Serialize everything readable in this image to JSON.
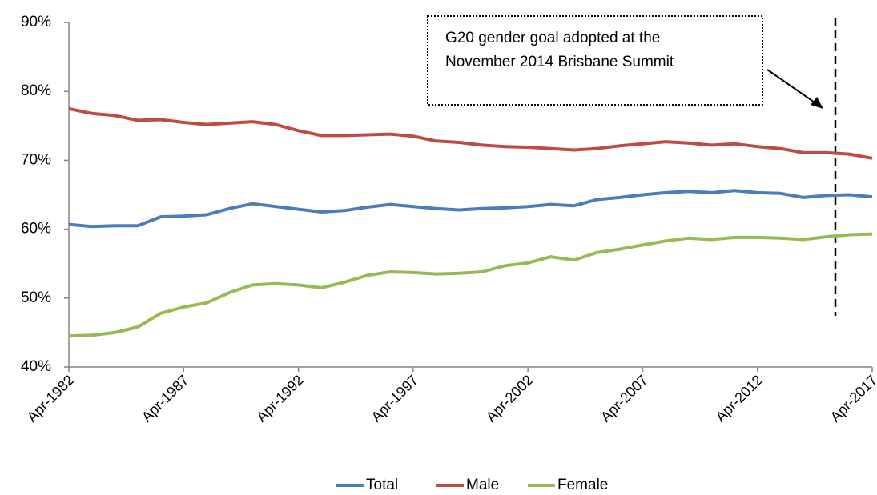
{
  "chart_data": {
    "type": "line",
    "categories": [
      "Apr-1982",
      null,
      null,
      null,
      null,
      "Apr-1987",
      null,
      null,
      null,
      null,
      "Apr-1992",
      null,
      null,
      null,
      null,
      "Apr-1997",
      null,
      null,
      null,
      null,
      "Apr-2002",
      null,
      null,
      null,
      null,
      "Apr-2007",
      null,
      null,
      null,
      null,
      "Apr-2012",
      null,
      null,
      null,
      null,
      "Apr-2017"
    ],
    "series": [
      {
        "name": "Total",
        "color": "#4a7ebb",
        "values": [
          60.7,
          60.4,
          60.5,
          60.5,
          61.8,
          61.9,
          62.1,
          63.0,
          63.7,
          63.3,
          62.9,
          62.5,
          62.7,
          63.2,
          63.6,
          63.3,
          63.0,
          62.8,
          63.0,
          63.1,
          63.3,
          63.6,
          63.4,
          64.3,
          64.6,
          65.0,
          65.3,
          65.5,
          65.3,
          65.6,
          65.3,
          65.2,
          64.6,
          64.9,
          65.0,
          64.7
        ]
      },
      {
        "name": "Male",
        "color": "#be4b48",
        "values": [
          77.5,
          76.8,
          76.5,
          75.8,
          75.9,
          75.5,
          75.2,
          75.4,
          75.6,
          75.2,
          74.3,
          73.6,
          73.6,
          73.7,
          73.8,
          73.5,
          72.8,
          72.6,
          72.2,
          72.0,
          71.9,
          71.7,
          71.5,
          71.7,
          72.1,
          72.4,
          72.7,
          72.5,
          72.2,
          72.4,
          72.0,
          71.7,
          71.1,
          71.1,
          70.9,
          70.3
        ]
      },
      {
        "name": "Female",
        "color": "#98b954",
        "values": [
          44.5,
          44.6,
          45.0,
          45.8,
          47.8,
          48.7,
          49.3,
          50.8,
          51.9,
          52.1,
          51.9,
          51.5,
          52.3,
          53.3,
          53.8,
          53.7,
          53.5,
          53.6,
          53.8,
          54.7,
          55.1,
          56.0,
          55.5,
          56.6,
          57.1,
          57.7,
          58.3,
          58.7,
          58.5,
          58.8,
          58.8,
          58.7,
          58.5,
          58.9,
          59.2,
          59.3
        ]
      }
    ],
    "ylim": [
      40,
      90
    ],
    "yticks": [
      {
        "value": 40,
        "label": "40%"
      },
      {
        "value": 50,
        "label": "50%"
      },
      {
        "value": 60,
        "label": "60%"
      },
      {
        "value": 70,
        "label": "70%"
      },
      {
        "value": 80,
        "label": "80%"
      },
      {
        "value": 90,
        "label": "90%"
      }
    ],
    "grid": false,
    "legend": "bottom",
    "annotation": [
      "G20 gender goal adopted at the",
      "November 2014 Brisbane Summit"
    ]
  }
}
